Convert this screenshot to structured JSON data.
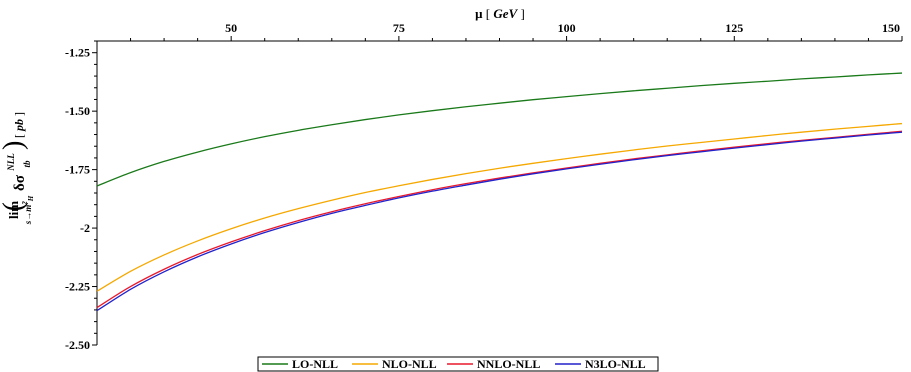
{
  "chart_data": {
    "type": "line",
    "xlabel_symbol": "μ",
    "xlabel_unit": "GeV",
    "ylabel": {
      "lim_word": "lim",
      "lim_sub_var": "s→m",
      "lim_sub_exp": "2",
      "lim_sub_idx": "H",
      "main": "δσ",
      "main_sub": "tb",
      "main_sup": "NLL",
      "unit": "pb"
    },
    "xlim": [
      30,
      150
    ],
    "ylim": [
      -2.5,
      -1.2
    ],
    "x_ticks": [
      50,
      75,
      100,
      125,
      150
    ],
    "x_tick_labels": [
      "50",
      "75",
      "100",
      "125",
      "150"
    ],
    "y_ticks": [
      -1.25,
      -1.5,
      -1.75,
      -2,
      -2.25,
      -2.5
    ],
    "y_tick_labels": [
      "-1.25",
      "-1.50",
      "-1.75",
      "-2",
      "-2.25",
      "-2.50"
    ],
    "x": [
      30,
      35,
      40,
      45,
      50,
      55,
      60,
      65,
      70,
      75,
      80,
      85,
      90,
      95,
      100,
      105,
      110,
      115,
      120,
      125,
      130,
      135,
      140,
      145,
      150
    ],
    "series": [
      {
        "name": "LO-NLL",
        "color": "#1a7a1a",
        "values": [
          -1.82,
          -1.763,
          -1.715,
          -1.675,
          -1.64,
          -1.609,
          -1.582,
          -1.558,
          -1.536,
          -1.516,
          -1.498,
          -1.481,
          -1.466,
          -1.451,
          -1.438,
          -1.425,
          -1.413,
          -1.402,
          -1.391,
          -1.381,
          -1.372,
          -1.362,
          -1.354,
          -1.345,
          -1.337
        ]
      },
      {
        "name": "NLO-NLL",
        "color": "#f5a800",
        "values": [
          -2.27,
          -2.185,
          -2.115,
          -2.055,
          -2.003,
          -1.957,
          -1.917,
          -1.881,
          -1.848,
          -1.819,
          -1.792,
          -1.767,
          -1.744,
          -1.723,
          -1.703,
          -1.684,
          -1.666,
          -1.649,
          -1.634,
          -1.619,
          -1.604,
          -1.59,
          -1.577,
          -1.565,
          -1.553
        ]
      },
      {
        "name": "NNLO-NLL",
        "color": "#e8192c",
        "values": [
          -2.34,
          -2.25,
          -2.176,
          -2.113,
          -2.059,
          -2.011,
          -1.968,
          -1.93,
          -1.896,
          -1.865,
          -1.836,
          -1.81,
          -1.786,
          -1.764,
          -1.743,
          -1.723,
          -1.704,
          -1.687,
          -1.67,
          -1.654,
          -1.639,
          -1.625,
          -1.612,
          -1.599,
          -1.586
        ]
      },
      {
        "name": "N3LO-NLL",
        "color": "#2222cc",
        "values": [
          -2.353,
          -2.262,
          -2.187,
          -2.123,
          -2.068,
          -2.019,
          -1.976,
          -1.937,
          -1.903,
          -1.871,
          -1.842,
          -1.816,
          -1.791,
          -1.768,
          -1.747,
          -1.727,
          -1.708,
          -1.69,
          -1.674,
          -1.658,
          -1.643,
          -1.628,
          -1.615,
          -1.602,
          -1.59
        ]
      }
    ],
    "legend_position": "bottom-center",
    "grid": false
  }
}
